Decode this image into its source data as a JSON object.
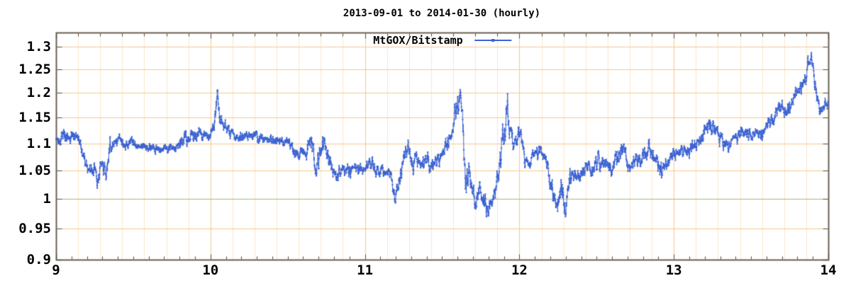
{
  "chart_data": {
    "type": "line",
    "title": "2013-09-01 to 2014-01-30 (hourly)",
    "legend_position": "top-center",
    "grid": true,
    "x_axis": {
      "min": 9,
      "max": 14,
      "tick_values": [
        9,
        10,
        11,
        12,
        13,
        14
      ],
      "tick_labels": [
        "9",
        "10",
        "11",
        "12",
        "13",
        "14"
      ],
      "minor_tick_step": 0.1,
      "grid_divisions_per_month": 7
    },
    "y_axis": {
      "scale": "log",
      "min": 0.9,
      "max": 1.332,
      "tick_values": [
        1.3,
        1.25,
        1.2,
        1.15,
        1.1,
        1.05,
        1.0,
        0.95,
        0.9
      ],
      "tick_labels": [
        "1.3",
        "1.25",
        "1.2",
        "1.15",
        "1.1",
        "1.05",
        "1",
        "0.95",
        "0.9"
      ],
      "unity_value": 1.0
    },
    "colors": {
      "background": "#ffffff",
      "border": "#6a6152",
      "tick": "#50483c",
      "grid_major": "#f5c98c",
      "grid_minor": "#fbe7cb",
      "unity_line": "#a6b678",
      "series_line": "#3c63d3",
      "text": "#000000"
    },
    "series": [
      {
        "name": "MtGOX/Bitstamp",
        "style": "linespoints",
        "color": "#3c63d3",
        "sample_count": 3650,
        "noise_seed": 20130901,
        "anchors_format": [
          "month",
          "ratio",
          "local_volatility"
        ],
        "anchors": [
          [
            9.0,
            1.108,
            0.008
          ],
          [
            9.04,
            1.12,
            0.01
          ],
          [
            9.07,
            1.108,
            0.008
          ],
          [
            9.1,
            1.118,
            0.008
          ],
          [
            9.13,
            1.112,
            0.008
          ],
          [
            9.16,
            1.09,
            0.008
          ],
          [
            9.19,
            1.062,
            0.01
          ],
          [
            9.22,
            1.048,
            0.01
          ],
          [
            9.245,
            1.058,
            0.008
          ],
          [
            9.27,
            1.036,
            0.01
          ],
          [
            9.3,
            1.062,
            0.01
          ],
          [
            9.325,
            1.042,
            0.01
          ],
          [
            9.35,
            1.09,
            0.013
          ],
          [
            9.38,
            1.105,
            0.012
          ],
          [
            9.41,
            1.11,
            0.01
          ],
          [
            9.44,
            1.098,
            0.008
          ],
          [
            9.47,
            1.102,
            0.007
          ],
          [
            9.5,
            1.1,
            0.007
          ],
          [
            9.54,
            1.095,
            0.007
          ],
          [
            9.58,
            1.09,
            0.006
          ],
          [
            9.62,
            1.088,
            0.006
          ],
          [
            9.66,
            1.086,
            0.006
          ],
          [
            9.7,
            1.09,
            0.006
          ],
          [
            9.74,
            1.088,
            0.006
          ],
          [
            9.78,
            1.095,
            0.007
          ],
          [
            9.82,
            1.105,
            0.009
          ],
          [
            9.86,
            1.112,
            0.01
          ],
          [
            9.9,
            1.11,
            0.009
          ],
          [
            9.93,
            1.122,
            0.008
          ],
          [
            9.96,
            1.115,
            0.008
          ],
          [
            10.0,
            1.12,
            0.008
          ],
          [
            10.03,
            1.145,
            0.012
          ],
          [
            10.045,
            1.205,
            0.01
          ],
          [
            10.06,
            1.15,
            0.012
          ],
          [
            10.08,
            1.135,
            0.008
          ],
          [
            10.11,
            1.128,
            0.007
          ],
          [
            10.14,
            1.12,
            0.007
          ],
          [
            10.17,
            1.112,
            0.007
          ],
          [
            10.2,
            1.115,
            0.007
          ],
          [
            10.24,
            1.112,
            0.007
          ],
          [
            10.28,
            1.113,
            0.007
          ],
          [
            10.32,
            1.11,
            0.007
          ],
          [
            10.36,
            1.11,
            0.007
          ],
          [
            10.4,
            1.106,
            0.007
          ],
          [
            10.44,
            1.11,
            0.007
          ],
          [
            10.48,
            1.104,
            0.007
          ],
          [
            10.52,
            1.095,
            0.008
          ],
          [
            10.56,
            1.082,
            0.008
          ],
          [
            10.6,
            1.076,
            0.009
          ],
          [
            10.63,
            1.09,
            0.013
          ],
          [
            10.655,
            1.112,
            0.014
          ],
          [
            10.68,
            1.048,
            0.012
          ],
          [
            10.71,
            1.075,
            0.015
          ],
          [
            10.735,
            1.11,
            0.012
          ],
          [
            10.76,
            1.08,
            0.012
          ],
          [
            10.79,
            1.052,
            0.01
          ],
          [
            10.83,
            1.046,
            0.009
          ],
          [
            10.87,
            1.053,
            0.009
          ],
          [
            10.91,
            1.049,
            0.008
          ],
          [
            10.95,
            1.055,
            0.008
          ],
          [
            10.99,
            1.049,
            0.008
          ],
          [
            11.03,
            1.058,
            0.009
          ],
          [
            11.07,
            1.048,
            0.009
          ],
          [
            11.11,
            1.054,
            0.008
          ],
          [
            11.145,
            1.048,
            0.008
          ],
          [
            11.17,
            1.035,
            0.01
          ],
          [
            11.195,
            0.99,
            0.013
          ],
          [
            11.22,
            1.03,
            0.012
          ],
          [
            11.25,
            1.068,
            0.012
          ],
          [
            11.28,
            1.095,
            0.01
          ],
          [
            11.305,
            1.062,
            0.012
          ],
          [
            11.33,
            1.075,
            0.012
          ],
          [
            11.36,
            1.06,
            0.01
          ],
          [
            11.39,
            1.068,
            0.01
          ],
          [
            11.42,
            1.062,
            0.009
          ],
          [
            11.45,
            1.072,
            0.009
          ],
          [
            11.48,
            1.058,
            0.01
          ],
          [
            11.51,
            1.08,
            0.01
          ],
          [
            11.54,
            1.098,
            0.012
          ],
          [
            11.57,
            1.13,
            0.018
          ],
          [
            11.6,
            1.18,
            0.02
          ],
          [
            11.615,
            1.2,
            0.015
          ],
          [
            11.635,
            1.155,
            0.025
          ],
          [
            11.655,
            1.01,
            0.025
          ],
          [
            11.675,
            1.04,
            0.018
          ],
          [
            11.7,
            1.008,
            0.015
          ],
          [
            11.725,
            0.99,
            0.012
          ],
          [
            11.75,
            1.015,
            0.012
          ],
          [
            11.775,
            1.0,
            0.012
          ],
          [
            11.8,
            0.982,
            0.01
          ],
          [
            11.82,
            0.988,
            0.01
          ],
          [
            11.845,
            1.015,
            0.012
          ],
          [
            11.87,
            1.05,
            0.015
          ],
          [
            11.895,
            1.11,
            0.02
          ],
          [
            11.92,
            1.175,
            0.02
          ],
          [
            11.94,
            1.14,
            0.018
          ],
          [
            11.96,
            1.1,
            0.012
          ],
          [
            11.985,
            1.105,
            0.012
          ],
          [
            12.01,
            1.12,
            0.012
          ],
          [
            12.035,
            1.065,
            0.012
          ],
          [
            12.06,
            1.058,
            0.01
          ],
          [
            12.09,
            1.082,
            0.01
          ],
          [
            12.12,
            1.095,
            0.013
          ],
          [
            12.15,
            1.08,
            0.01
          ],
          [
            12.18,
            1.062,
            0.01
          ],
          [
            12.21,
            1.005,
            0.015
          ],
          [
            12.24,
            0.99,
            0.012
          ],
          [
            12.27,
            1.025,
            0.012
          ],
          [
            12.3,
            0.985,
            0.014
          ],
          [
            12.33,
            1.04,
            0.012
          ],
          [
            12.36,
            1.042,
            0.01
          ],
          [
            12.4,
            1.048,
            0.01
          ],
          [
            12.44,
            1.052,
            0.01
          ],
          [
            12.48,
            1.06,
            0.01
          ],
          [
            12.52,
            1.075,
            0.013
          ],
          [
            12.56,
            1.06,
            0.01
          ],
          [
            12.6,
            1.048,
            0.01
          ],
          [
            12.64,
            1.065,
            0.012
          ],
          [
            12.66,
            1.09,
            0.014
          ],
          [
            12.69,
            1.06,
            0.01
          ],
          [
            12.72,
            1.058,
            0.01
          ],
          [
            12.76,
            1.068,
            0.01
          ],
          [
            12.8,
            1.075,
            0.01
          ],
          [
            12.84,
            1.088,
            0.01
          ],
          [
            12.88,
            1.075,
            0.012
          ],
          [
            12.92,
            1.048,
            0.012
          ],
          [
            12.96,
            1.068,
            0.01
          ],
          [
            13.0,
            1.078,
            0.009
          ],
          [
            13.04,
            1.082,
            0.009
          ],
          [
            13.08,
            1.078,
            0.008
          ],
          [
            13.12,
            1.09,
            0.01
          ],
          [
            13.16,
            1.105,
            0.01
          ],
          [
            13.2,
            1.12,
            0.012
          ],
          [
            13.24,
            1.14,
            0.012
          ],
          [
            13.28,
            1.125,
            0.01
          ],
          [
            13.31,
            1.105,
            0.01
          ],
          [
            13.34,
            1.095,
            0.009
          ],
          [
            13.38,
            1.11,
            0.008
          ],
          [
            13.42,
            1.115,
            0.008
          ],
          [
            13.46,
            1.118,
            0.008
          ],
          [
            13.5,
            1.12,
            0.008
          ],
          [
            13.54,
            1.118,
            0.008
          ],
          [
            13.58,
            1.125,
            0.009
          ],
          [
            13.62,
            1.14,
            0.01
          ],
          [
            13.66,
            1.16,
            0.01
          ],
          [
            13.7,
            1.17,
            0.01
          ],
          [
            13.73,
            1.162,
            0.01
          ],
          [
            13.76,
            1.175,
            0.01
          ],
          [
            13.8,
            1.195,
            0.012
          ],
          [
            13.84,
            1.225,
            0.012
          ],
          [
            13.875,
            1.255,
            0.012
          ],
          [
            13.89,
            1.27,
            0.008
          ],
          [
            13.905,
            1.235,
            0.012
          ],
          [
            13.92,
            1.2,
            0.012
          ],
          [
            13.94,
            1.17,
            0.01
          ],
          [
            13.96,
            1.165,
            0.009
          ],
          [
            13.98,
            1.175,
            0.009
          ],
          [
            14.0,
            1.18,
            0.008
          ]
        ]
      }
    ]
  }
}
